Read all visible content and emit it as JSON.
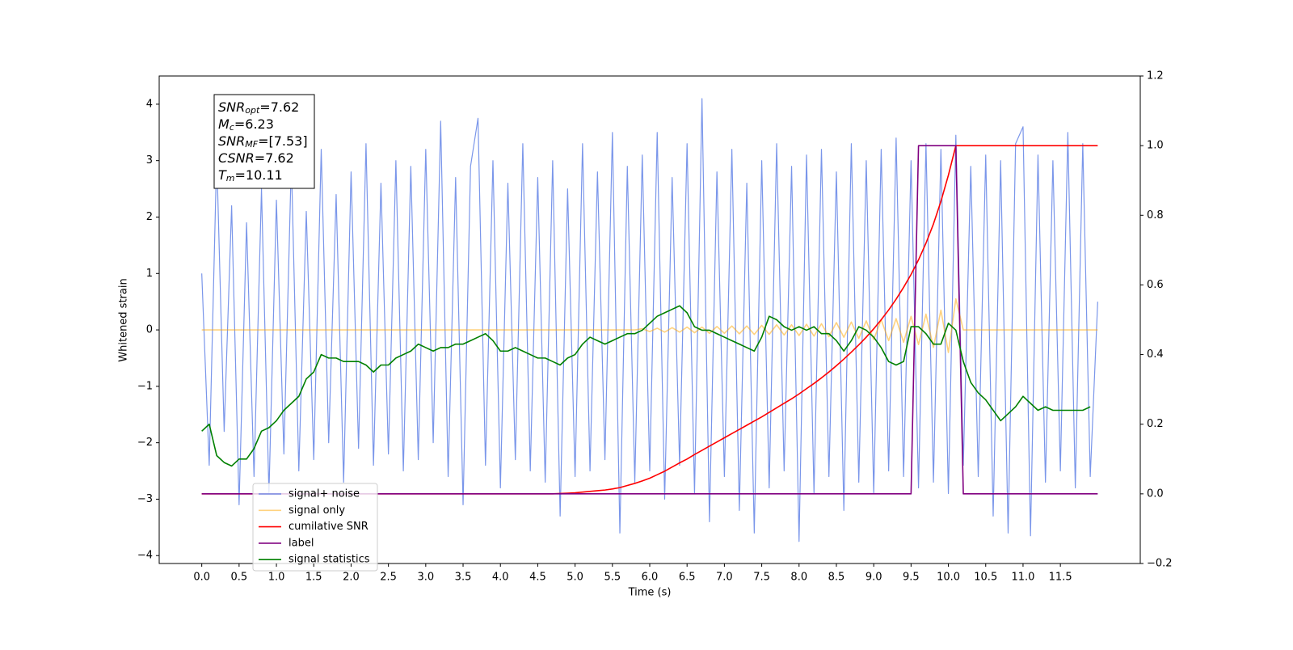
{
  "chart_data": {
    "type": "line",
    "xlabel": "Time (s)",
    "ylabel": "Whitened strain",
    "annotation": [
      {
        "base": "SNR",
        "sub": "opt",
        "rest": "=7.62"
      },
      {
        "base": "M",
        "sub": "c",
        "rest": "=6.23"
      },
      {
        "base": "SNR",
        "sub": "MF",
        "rest": "=[7.53]"
      },
      {
        "base": "CSNR",
        "sub": null,
        "rest": "=7.62"
      },
      {
        "base": "T",
        "sub": "m",
        "rest": "=10.11"
      }
    ],
    "legend": "lower left",
    "xlim": [
      -0.57,
      12.57
    ],
    "ylim": [
      -4.14,
      4.5
    ],
    "y2lim": [
      -0.2,
      1.2
    ],
    "xticks": [
      {
        "value": 0,
        "label": "0.0"
      },
      0.5,
      {
        "value": 1,
        "label": "1.0"
      },
      1.5,
      {
        "value": 2,
        "label": "2.0"
      },
      2.5,
      {
        "value": 3,
        "label": "3.0"
      },
      3.5,
      {
        "value": 4,
        "label": "4.0"
      },
      4.5,
      {
        "value": 5,
        "label": "5.0"
      },
      5.5,
      {
        "value": 6,
        "label": "6.0"
      },
      6.5,
      {
        "value": 7,
        "label": "7.0"
      },
      7.5,
      {
        "value": 8,
        "label": "8.0"
      },
      8.5,
      {
        "value": 9,
        "label": "9.0"
      },
      9.5,
      {
        "value": 10,
        "label": "10.0"
      },
      10.5,
      {
        "value": 11,
        "label": "11.0"
      },
      11.5
    ],
    "yticks": [
      {
        "value": -4,
        "label": "−4"
      },
      {
        "value": -3,
        "label": "−3"
      },
      {
        "value": -2,
        "label": "−2"
      },
      {
        "value": -1,
        "label": "−1"
      },
      0,
      1,
      2,
      3,
      4
    ],
    "y2ticks": [
      {
        "value": -0.2,
        "label": "−0.2"
      },
      {
        "value": 0,
        "label": "0.0"
      },
      0.2,
      0.4,
      0.6,
      0.8,
      {
        "value": 1,
        "label": "1.0"
      },
      1.2
    ],
    "x": [
      0,
      0.1,
      0.2,
      0.3,
      0.4,
      0.5,
      0.6,
      0.7,
      0.8,
      0.9,
      1,
      1.1,
      1.2,
      1.3,
      1.4,
      1.5,
      1.6,
      1.7,
      1.8,
      1.9,
      2,
      2.1,
      2.2,
      2.3,
      2.4,
      2.5,
      2.6,
      2.7,
      2.8,
      2.9,
      3,
      3.1,
      3.2,
      3.3,
      3.4,
      3.5,
      3.6,
      3.7,
      3.8,
      3.9,
      4,
      4.1,
      4.2,
      4.3,
      4.4,
      4.5,
      4.6,
      4.7,
      4.8,
      4.9,
      5,
      5.1,
      5.2,
      5.3,
      5.4,
      5.5,
      5.6,
      5.7,
      5.8,
      5.9,
      6,
      6.1,
      6.2,
      6.3,
      6.4,
      6.5,
      6.6,
      6.7,
      6.8,
      6.9,
      7,
      7.1,
      7.2,
      7.3,
      7.4,
      7.5,
      7.6,
      7.7,
      7.8,
      7.9,
      8,
      8.1,
      8.2,
      8.3,
      8.4,
      8.5,
      8.6,
      8.7,
      8.8,
      8.9,
      9,
      9.1,
      9.2,
      9.3,
      9.4,
      9.5,
      9.6,
      9.7,
      9.8,
      9.9,
      10,
      10.1,
      10.2,
      10.3,
      10.4,
      10.5,
      10.6,
      10.7,
      10.8,
      10.9,
      11,
      11.1,
      11.2,
      11.3,
      11.4,
      11.5,
      11.6,
      11.7,
      11.8,
      11.9,
      12
    ],
    "series": [
      {
        "name": "signal+ noise",
        "color": "#4169e1",
        "alpha": 0.7,
        "values": [
          1.0,
          -2.4,
          3.1,
          -1.8,
          2.2,
          -3.1,
          1.9,
          -2.6,
          2.5,
          -2.9,
          2.3,
          -2.2,
          3.0,
          -2.5,
          2.1,
          -2.3,
          3.2,
          -2.0,
          2.4,
          -2.7,
          2.8,
          -2.1,
          3.3,
          -2.4,
          2.6,
          -2.2,
          3.0,
          -2.5,
          2.9,
          -2.3,
          3.2,
          -2.0,
          3.7,
          -2.6,
          2.7,
          -3.1,
          2.9,
          3.75,
          -2.4,
          3.0,
          -2.8,
          2.6,
          -2.3,
          3.3,
          -2.5,
          2.7,
          -2.7,
          3.0,
          -3.3,
          2.5,
          -2.6,
          3.3,
          -2.5,
          2.8,
          -2.3,
          3.5,
          -3.6,
          2.9,
          -2.7,
          3.1,
          -2.5,
          3.5,
          -3.0,
          2.7,
          -2.4,
          3.3,
          -2.9,
          4.1,
          -3.4,
          2.8,
          -2.6,
          3.2,
          -3.2,
          2.6,
          -3.6,
          3.0,
          -2.8,
          3.3,
          -2.5,
          2.9,
          -3.75,
          3.1,
          -2.9,
          3.2,
          -2.6,
          2.8,
          -3.2,
          3.3,
          -2.7,
          3.0,
          -2.9,
          3.2,
          -2.5,
          3.4,
          -2.6,
          3.0,
          -2.8,
          3.3,
          -2.7,
          3.2,
          -2.9,
          3.45,
          -2.4,
          2.9,
          -2.6,
          3.1,
          -3.3,
          3.0,
          -3.6,
          3.3,
          3.6,
          -3.65,
          3.1,
          -2.7,
          3.0,
          -2.5,
          3.5,
          -2.8,
          3.3,
          -2.6,
          0.5
        ]
      },
      {
        "name": "signal only",
        "color": "#ffa500",
        "alpha": 0.5,
        "values": [
          0,
          0,
          0,
          0,
          0,
          0,
          0,
          0,
          0,
          0,
          0,
          0,
          0,
          0,
          0,
          0,
          0,
          0,
          0,
          0,
          0,
          0,
          0,
          0,
          0,
          0,
          0,
          0,
          0,
          0,
          0,
          0,
          0,
          0,
          0,
          0,
          0,
          0,
          0,
          0,
          0,
          0,
          0,
          0,
          0,
          0,
          0,
          0,
          0,
          0,
          0,
          0,
          0,
          0,
          0,
          0,
          0,
          0,
          0,
          0.02,
          -0.03,
          0.03,
          -0.04,
          0.04,
          -0.04,
          0.05,
          -0.05,
          0.05,
          -0.06,
          0.06,
          -0.06,
          0.07,
          -0.07,
          0.07,
          -0.08,
          0.08,
          -0.08,
          0.09,
          -0.09,
          0.09,
          -0.1,
          0.1,
          -0.11,
          0.11,
          -0.12,
          0.13,
          -0.13,
          0.14,
          -0.15,
          0.16,
          -0.17,
          0.18,
          -0.19,
          0.2,
          -0.22,
          0.24,
          -0.26,
          0.28,
          -0.31,
          0.35,
          -0.4,
          0.55,
          0,
          0,
          0,
          0,
          0,
          0,
          0,
          0,
          0,
          0,
          0,
          0,
          0,
          0,
          0,
          0,
          0,
          0,
          0
        ]
      },
      {
        "name": "cumilative SNR",
        "color": "#ff0000",
        "axis": "y2",
        "values": [
          0,
          0,
          0,
          0,
          0,
          0,
          0,
          0,
          0,
          0,
          0,
          0,
          0,
          0,
          0,
          0,
          0,
          0,
          0,
          0,
          0,
          0,
          0,
          0,
          0,
          0,
          0,
          0,
          0,
          0,
          0,
          0,
          0,
          0,
          0,
          0,
          0,
          0,
          0,
          0,
          0,
          0,
          0,
          0,
          0,
          0,
          0,
          0,
          0.001,
          0.002,
          0.003,
          0.005,
          0.007,
          0.009,
          0.011,
          0.014,
          0.018,
          0.024,
          0.03,
          0.037,
          0.045,
          0.055,
          0.065,
          0.077,
          0.089,
          0.1,
          0.113,
          0.125,
          0.137,
          0.149,
          0.161,
          0.173,
          0.185,
          0.197,
          0.209,
          0.221,
          0.234,
          0.247,
          0.26,
          0.273,
          0.287,
          0.302,
          0.317,
          0.333,
          0.35,
          0.368,
          0.387,
          0.407,
          0.428,
          0.45,
          0.474,
          0.5,
          0.528,
          0.559,
          0.593,
          0.63,
          0.672,
          0.72,
          0.775,
          0.84,
          0.915,
          1,
          1,
          1,
          1,
          1,
          1,
          1,
          1,
          1,
          1,
          1,
          1,
          1,
          1,
          1,
          1,
          1,
          1,
          1,
          1
        ]
      },
      {
        "name": "label",
        "color": "#800080",
        "axis": "y2",
        "values": [
          0,
          0,
          0,
          0,
          0,
          0,
          0,
          0,
          0,
          0,
          0,
          0,
          0,
          0,
          0,
          0,
          0,
          0,
          0,
          0,
          0,
          0,
          0,
          0,
          0,
          0,
          0,
          0,
          0,
          0,
          0,
          0,
          0,
          0,
          0,
          0,
          0,
          0,
          0,
          0,
          0,
          0,
          0,
          0,
          0,
          0,
          0,
          0,
          0,
          0,
          0,
          0,
          0,
          0,
          0,
          0,
          0,
          0,
          0,
          0,
          0,
          0,
          0,
          0,
          0,
          0,
          0,
          0,
          0,
          0,
          0,
          0,
          0,
          0,
          0,
          0,
          0,
          0,
          0,
          0,
          0,
          0,
          0,
          0,
          0,
          0,
          0,
          0,
          0,
          0,
          0,
          0,
          0,
          0,
          0,
          0,
          1,
          1,
          1,
          1,
          1,
          1,
          0,
          0,
          0,
          0,
          0,
          0,
          0,
          0,
          0,
          0,
          0,
          0,
          0,
          0,
          0,
          0,
          0,
          0,
          0
        ]
      },
      {
        "name": "signal statistics",
        "color": "#008000",
        "axis": "y2",
        "values": [
          0.18,
          0.2,
          0.11,
          0.09,
          0.08,
          0.1,
          0.1,
          0.13,
          0.18,
          0.19,
          0.21,
          0.24,
          0.26,
          0.28,
          0.33,
          0.35,
          0.4,
          0.39,
          0.39,
          0.38,
          0.38,
          0.38,
          0.37,
          0.35,
          0.37,
          0.37,
          0.39,
          0.4,
          0.41,
          0.43,
          0.42,
          0.41,
          0.42,
          0.42,
          0.43,
          0.43,
          0.44,
          0.45,
          0.46,
          0.44,
          0.41,
          0.41,
          0.42,
          0.41,
          0.4,
          0.39,
          0.39,
          0.38,
          0.37,
          0.39,
          0.4,
          0.43,
          0.45,
          0.44,
          0.43,
          0.44,
          0.45,
          0.46,
          0.46,
          0.47,
          0.49,
          0.51,
          0.52,
          0.53,
          0.54,
          0.52,
          0.48,
          0.47,
          0.47,
          0.46,
          0.45,
          0.44,
          0.43,
          0.42,
          0.41,
          0.45,
          0.51,
          0.5,
          0.48,
          0.47,
          0.48,
          0.47,
          0.48,
          0.46,
          0.46,
          0.44,
          0.41,
          0.44,
          0.48,
          0.47,
          0.45,
          0.42,
          0.38,
          0.37,
          0.38,
          0.48,
          0.48,
          0.46,
          0.43,
          0.43,
          0.49,
          0.47,
          0.38,
          0.32,
          0.29,
          0.27,
          0.24,
          0.21,
          0.23,
          0.25,
          0.28,
          0.26,
          0.24,
          0.25,
          0.24,
          0.24,
          0.24,
          0.24,
          0.24,
          0.25,
          null
        ]
      }
    ]
  }
}
